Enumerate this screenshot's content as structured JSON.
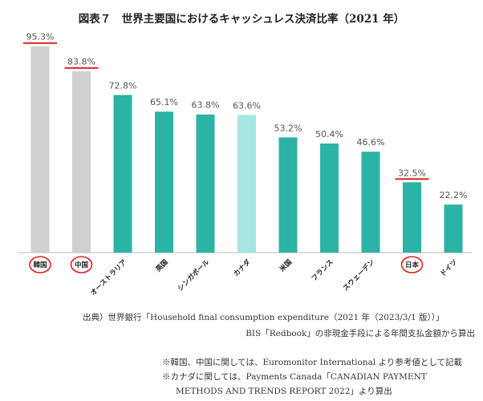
{
  "chart_data": {
    "type": "bar",
    "title": "図表７　世界主要国におけるキャッシュレス決済比率（2021 年）",
    "categories": [
      "韓国",
      "中国",
      "オーストラリア",
      "英国",
      "シンガポール",
      "カナダ",
      "米国",
      "フランス",
      "スウェーデン",
      "日本",
      "ドイツ"
    ],
    "values": [
      95.3,
      83.8,
      72.8,
      65.1,
      63.8,
      63.6,
      53.2,
      50.4,
      46.6,
      32.5,
      22.2
    ],
    "value_labels": [
      "95.3%",
      "83.8%",
      "72.8%",
      "65.1%",
      "63.8%",
      "63.6%",
      "53.2%",
      "50.4%",
      "46.6%",
      "32.5%",
      "22.2%"
    ],
    "ylim": [
      0,
      100
    ],
    "grid": false,
    "highlighted": [
      "韓国",
      "中国",
      "日本"
    ],
    "colors": {
      "gray": "#d0d0d0",
      "teal": "#2bb3a5",
      "light_teal": "#a3e6e2",
      "highlight_red": "#e02020"
    },
    "bar_colors": [
      "#d0d0d0",
      "#d0d0d0",
      "#2bb3a5",
      "#2bb3a5",
      "#2bb3a5",
      "#a3e6e2",
      "#2bb3a5",
      "#2bb3a5",
      "#2bb3a5",
      "#2bb3a5",
      "#2bb3a5"
    ]
  },
  "notes": {
    "source_line1": "出典）世界銀行「Household final consumption expenditure（2021 年（2023/3/1 版））」",
    "source_line2": "BIS「Redbook」の非現金手段による年間支払金額から算出",
    "note_line1": "※韓国、中国に関しては、Euromonitor International より参考値として記載",
    "note_line2": "※カナダに関しては、Payments Canada「CANADIAN PAYMENT",
    "note_line3": "METHODS AND TRENDS REPORT 2022」より算出"
  }
}
